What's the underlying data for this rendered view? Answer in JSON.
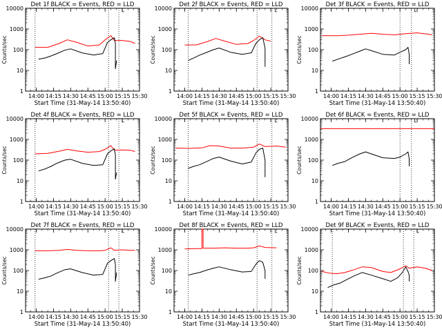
{
  "chart_data": [
    {
      "type": "line",
      "title": "Det 1f BLACK = Events, RED = LLD",
      "xlabel": "Start Time (31-May-14 13:50:40)",
      "ylabel": "Counts/sec",
      "ylog": true,
      "ylim": [
        1,
        10000
      ],
      "xlim": [
        "13:50:40",
        "15:30"
      ],
      "xticks": [
        "14:00",
        "14:15",
        "14:30",
        "14:45",
        "15:00",
        "15:15",
        "15:30"
      ],
      "yticks": [
        "1",
        "10",
        "100",
        "1000",
        "10000"
      ],
      "vlines": [
        "13:59",
        "15:03",
        "15:12"
      ],
      "marker": "└",
      "series": [
        {
          "color": "#ff0000",
          "x": [
            "13:59",
            "14:10",
            "14:20",
            "14:27",
            "14:35",
            "14:45",
            "14:55",
            "15:00",
            "15:05",
            "15:08",
            "15:15",
            "15:22",
            "15:26"
          ],
          "values": [
            130,
            130,
            200,
            300,
            230,
            150,
            170,
            300,
            480,
            280,
            280,
            250,
            200
          ]
        },
        {
          "color": "#000000",
          "x": [
            "14:02",
            "14:08",
            "14:13",
            "14:18",
            "14:25",
            "14:30",
            "14:40",
            "14:50",
            "14:58",
            "15:02",
            "15:05",
            "15:08",
            "15:09",
            "15:09",
            "15:10"
          ],
          "values": [
            35,
            40,
            50,
            65,
            95,
            110,
            70,
            55,
            65,
            220,
            300,
            380,
            200,
            12,
            30
          ]
        }
      ]
    },
    {
      "type": "line",
      "title": "Det 2f BLACK = Events, RED = LLD",
      "xlabel": "Start Time (31-May-14 13:50:40)",
      "ylabel": "Counts/sec",
      "ylog": true,
      "ylim": [
        1,
        10000
      ],
      "xlim": [
        "13:50:40",
        "15:30"
      ],
      "xticks": [
        "14:00",
        "14:15",
        "14:30",
        "14:45",
        "15:00",
        "15:15",
        "15:30"
      ],
      "yticks": [
        "1",
        "10",
        "100",
        "1000",
        "10000"
      ],
      "vlines": [
        "14:03",
        "15:03",
        "15:16"
      ],
      "marker": "└",
      "series": [
        {
          "color": "#ff0000",
          "x": [
            "14:00",
            "14:10",
            "14:20",
            "14:27",
            "14:35",
            "14:45",
            "14:55",
            "15:00",
            "15:05",
            "15:10",
            "15:15"
          ],
          "values": [
            170,
            170,
            250,
            350,
            260,
            180,
            200,
            280,
            450,
            300,
            260
          ]
        },
        {
          "color": "#000000",
          "x": [
            "14:03",
            "14:08",
            "14:13",
            "14:18",
            "14:25",
            "14:30",
            "14:40",
            "14:50",
            "14:58",
            "15:02",
            "15:05",
            "15:08",
            "15:10",
            "15:10"
          ],
          "values": [
            30,
            40,
            55,
            70,
            100,
            120,
            75,
            60,
            70,
            200,
            300,
            380,
            120,
            15
          ]
        }
      ]
    },
    {
      "type": "line",
      "title": "Det 3f BLACK = Events, RED = LLD",
      "xlabel": "Start Time (31-May-14 13:50:40)",
      "ylabel": "Counts/sec",
      "ylog": true,
      "ylim": [
        1,
        10000
      ],
      "xlim": [
        "13:50:40",
        "15:30"
      ],
      "xticks": [
        "14:00",
        "14:15",
        "14:30",
        "14:45",
        "15:00",
        "15:15",
        "15:30"
      ],
      "yticks": [
        "1",
        "10",
        "100",
        "1000",
        "10000"
      ],
      "vlines": [
        "15:00",
        "15:10"
      ],
      "marker": "└",
      "series": [
        {
          "color": "#ff0000",
          "x": [
            "13:52",
            "14:05",
            "14:15",
            "14:25",
            "14:35",
            "14:45",
            "14:55",
            "15:05",
            "15:15",
            "15:25",
            "15:28"
          ],
          "values": [
            480,
            470,
            500,
            560,
            620,
            560,
            520,
            600,
            650,
            560,
            520
          ]
        },
        {
          "color": "#000000",
          "x": [
            "14:01",
            "14:06",
            "14:12",
            "14:18",
            "14:25",
            "14:30",
            "14:35",
            "14:45",
            "14:55",
            "15:00",
            "15:05",
            "15:07",
            "15:08",
            "15:08"
          ],
          "values": [
            28,
            35,
            45,
            60,
            85,
            110,
            90,
            60,
            55,
            75,
            100,
            130,
            60,
            20
          ]
        }
      ]
    },
    {
      "type": "line",
      "title": "Det 4f BLACK = Events, RED = LLD",
      "xlabel": "Start Time (31-May-14 13:50:40)",
      "ylabel": "Counts/sec",
      "ylog": true,
      "ylim": [
        1,
        10000
      ],
      "xlim": [
        "13:50:40",
        "15:30"
      ],
      "xticks": [
        "14:00",
        "14:15",
        "14:30",
        "14:45",
        "15:00",
        "15:15",
        "15:30"
      ],
      "yticks": [
        "1",
        "10",
        "100",
        "1000",
        "10000"
      ],
      "vlines": [
        "13:59",
        "15:03",
        "15:12"
      ],
      "marker": "└",
      "series": [
        {
          "color": "#ff0000",
          "x": [
            "13:59",
            "14:10",
            "14:20",
            "14:27",
            "14:35",
            "14:45",
            "14:55",
            "15:00",
            "15:05",
            "15:08",
            "15:15",
            "15:22",
            "15:26"
          ],
          "values": [
            200,
            210,
            270,
            330,
            280,
            240,
            260,
            330,
            500,
            300,
            310,
            300,
            260
          ]
        },
        {
          "color": "#000000",
          "x": [
            "14:02",
            "14:08",
            "14:13",
            "14:18",
            "14:25",
            "14:30",
            "14:40",
            "14:50",
            "14:58",
            "15:02",
            "15:05",
            "15:08",
            "15:09",
            "15:09",
            "15:10"
          ],
          "values": [
            30,
            38,
            50,
            70,
            100,
            110,
            70,
            55,
            60,
            200,
            280,
            350,
            180,
            12,
            25
          ]
        }
      ]
    },
    {
      "type": "line",
      "title": "Det 5f BLACK = Events, RED = LLD",
      "xlabel": "Start Time (31-May-14 13:50:40)",
      "ylabel": "Counts/sec",
      "ylog": true,
      "ylim": [
        1,
        10000
      ],
      "xlim": [
        "13:50:40",
        "15:30"
      ],
      "xticks": [
        "14:00",
        "14:15",
        "14:30",
        "14:45",
        "15:00",
        "15:15",
        "15:30"
      ],
      "yticks": [
        "1",
        "10",
        "100",
        "1000",
        "10000"
      ],
      "vlines": [
        "14:03",
        "15:03",
        "15:16"
      ],
      "marker": "└",
      "series": [
        {
          "color": "#ff0000",
          "x": [
            "13:52",
            "14:05",
            "14:15",
            "14:22",
            "14:30",
            "14:40",
            "14:50",
            "15:00",
            "15:05",
            "15:10",
            "15:20",
            "15:28"
          ],
          "values": [
            380,
            370,
            390,
            500,
            480,
            380,
            380,
            420,
            600,
            450,
            480,
            420
          ]
        },
        {
          "color": "#000000",
          "x": [
            "14:03",
            "14:08",
            "14:13",
            "14:18",
            "14:25",
            "14:30",
            "14:40",
            "14:50",
            "14:58",
            "15:02",
            "15:05",
            "15:08",
            "15:10",
            "15:10"
          ],
          "values": [
            40,
            50,
            60,
            80,
            120,
            140,
            90,
            65,
            80,
            220,
            330,
            380,
            100,
            15
          ]
        }
      ]
    },
    {
      "type": "line",
      "title": "Det 6f BLACK = Events, RED = LLD",
      "xlabel": "Start Time (31-May-14 13:50:40)",
      "ylabel": "Counts/sec",
      "ylog": true,
      "ylim": [
        1,
        10000
      ],
      "xlim": [
        "13:50:40",
        "15:30"
      ],
      "xticks": [
        "14:00",
        "14:15",
        "14:30",
        "14:45",
        "15:00",
        "15:15",
        "15:30"
      ],
      "yticks": [
        "1",
        "10",
        "100",
        "1000",
        "10000"
      ],
      "vlines": [
        "15:00",
        "15:10"
      ],
      "marker": "└",
      "series": [
        {
          "color": "#ff0000",
          "x": [
            "13:51",
            "15:30"
          ],
          "values": [
            3300,
            3300
          ]
        },
        {
          "color": "#000000",
          "x": [
            "14:01",
            "14:06",
            "14:12",
            "14:18",
            "14:25",
            "14:30",
            "14:35",
            "14:45",
            "14:55",
            "15:00",
            "15:05",
            "15:07",
            "15:08",
            "15:08"
          ],
          "values": [
            55,
            70,
            85,
            130,
            200,
            250,
            200,
            130,
            120,
            140,
            200,
            250,
            120,
            50
          ]
        }
      ]
    },
    {
      "type": "line",
      "title": "Det 7f BLACK = Events, RED = LLD",
      "xlabel": "Start Time (31-May-14 13:50:40)",
      "ylabel": "Counts/sec",
      "ylog": true,
      "ylim": [
        1,
        10000
      ],
      "xlim": [
        "13:50:40",
        "15:30"
      ],
      "xticks": [
        "14:00",
        "14:15",
        "14:30",
        "14:45",
        "15:00",
        "15:15",
        "15:30"
      ],
      "yticks": [
        "1",
        "10",
        "100",
        "1000",
        "10000"
      ],
      "vlines": [
        "13:59",
        "15:03",
        "15:12"
      ],
      "marker": "└",
      "series": [
        {
          "color": "#ff0000",
          "x": [
            "13:59",
            "14:10",
            "14:20",
            "14:27",
            "14:35",
            "14:45",
            "14:55",
            "15:00",
            "15:05",
            "15:08",
            "15:15",
            "15:22",
            "15:26"
          ],
          "values": [
            900,
            900,
            950,
            1050,
            950,
            900,
            900,
            950,
            1250,
            950,
            1000,
            950,
            950
          ]
        },
        {
          "color": "#000000",
          "x": [
            "14:02",
            "14:08",
            "14:13",
            "14:18",
            "14:25",
            "14:30",
            "14:40",
            "14:50",
            "14:58",
            "15:02",
            "15:05",
            "15:08",
            "15:09",
            "15:09",
            "15:10"
          ],
          "values": [
            38,
            45,
            55,
            75,
            110,
            120,
            80,
            60,
            65,
            220,
            300,
            380,
            200,
            30,
            80
          ]
        }
      ]
    },
    {
      "type": "line",
      "title": "Det 8f BLACK = Events, RED = LLD",
      "xlabel": "Start Time (31-May-14 13:50:40)",
      "ylabel": "Counts/sec",
      "ylog": true,
      "ylim": [
        1,
        10000
      ],
      "xlim": [
        "13:50:40",
        "15:30"
      ],
      "xticks": [
        "14:00",
        "14:15",
        "14:30",
        "14:45",
        "15:00",
        "15:15",
        "15:30"
      ],
      "yticks": [
        "1",
        "10",
        "100",
        "1000",
        "10000"
      ],
      "vlines": [
        "14:03",
        "15:03",
        "15:16"
      ],
      "marker": "└",
      "series": [
        {
          "color": "#ff0000",
          "x": [
            "14:00",
            "14:10",
            "14:15",
            "14:15",
            "14:16",
            "14:16",
            "14:25",
            "14:35",
            "14:45",
            "14:55",
            "15:00",
            "15:05",
            "15:10",
            "15:20"
          ],
          "values": [
            1100,
            1150,
            1150,
            10000,
            10000,
            1200,
            1200,
            1250,
            1200,
            1200,
            1250,
            1550,
            1300,
            1250
          ]
        },
        {
          "color": "#000000",
          "x": [
            "14:03",
            "14:08",
            "14:13",
            "14:18",
            "14:25",
            "14:30",
            "14:40",
            "14:50",
            "14:58",
            "15:02",
            "15:05",
            "15:08",
            "15:10",
            "15:10"
          ],
          "values": [
            60,
            70,
            80,
            100,
            130,
            150,
            110,
            85,
            90,
            200,
            300,
            250,
            100,
            40
          ]
        }
      ]
    },
    {
      "type": "line",
      "title": "Det 9f BLACK = Events, RED = LLD",
      "xlabel": "Start Time (31-May-14 13:50:40)",
      "ylabel": "Counts/sec",
      "ylog": true,
      "ylim": [
        1,
        10000
      ],
      "xlim": [
        "13:50:40",
        "15:30"
      ],
      "xticks": [
        "14:00",
        "14:15",
        "14:30",
        "14:45",
        "15:00",
        "15:15",
        "15:30"
      ],
      "yticks": [
        "1",
        "10",
        "100",
        "1000",
        "10000"
      ],
      "vlines": [
        "14:01",
        "15:03",
        "15:12"
      ],
      "marker": "└",
      "series": [
        {
          "color": "#ff0000",
          "x": [
            "13:52",
            "13:58",
            "14:05",
            "14:12",
            "14:20",
            "14:27",
            "14:35",
            "14:45",
            "14:52",
            "15:00",
            "15:05",
            "15:08",
            "15:15",
            "15:22",
            "15:28"
          ],
          "values": [
            90,
            75,
            70,
            80,
            110,
            150,
            140,
            90,
            80,
            120,
            170,
            130,
            150,
            130,
            100
          ]
        },
        {
          "color": "#000000",
          "x": [
            "13:57",
            "14:02",
            "14:08",
            "14:13",
            "14:20",
            "14:27",
            "14:35",
            "14:45",
            "14:52",
            "14:58",
            "15:02",
            "15:05",
            "15:07",
            "15:08",
            "15:08"
          ],
          "values": [
            15,
            20,
            25,
            35,
            55,
            80,
            60,
            40,
            30,
            45,
            80,
            150,
            90,
            60,
            30
          ]
        }
      ]
    }
  ]
}
